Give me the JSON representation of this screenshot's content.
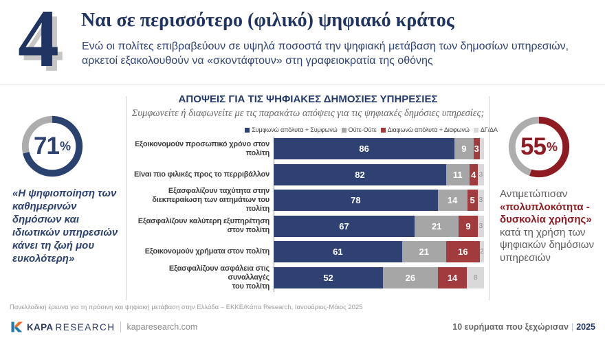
{
  "header": {
    "number": "4",
    "title": "Ναι σε περισσότερο (φιλικό) ψηφιακό κράτος",
    "subtitle": "Ενώ οι πολίτες επιβραβεύουν σε υψηλά ποσοστά την ψηφιακή μετάβαση των δημοσίων υπηρεσιών, αρκετοί εξακολουθούν να «σκοντάφτουν» στη γραφειοκρατία της οθόνης"
  },
  "left_stat": {
    "value": 71,
    "percent_sign": "%",
    "color": "#2B4170",
    "track_color": "#ADADAD",
    "quote": "«Η ψηφιοποίηση των καθημερινών δημόσιων και ιδιωτικών υπηρεσιών κάνει τη ζωή μου ευκολότερη»"
  },
  "right_stat": {
    "value": 55,
    "percent_sign": "%",
    "color": "#8E1B22",
    "track_color": "#ADADAD",
    "text_before": "Αντιμετώπισαν",
    "text_highlight": "«πολυπλοκότητα - δυσκολία χρήσης»",
    "text_after": "κατά τη χρήση των ψηφιακών δημόσιων υπηρεσιών"
  },
  "panel": {
    "title": "ΑΠΟΨΕΙΣ ΓΙΑ ΤΙΣ ΨΗΦΙΑΚΕΣ ΔΗΜΟΣΙΕΣ ΥΠΗΡΕΣΙΕΣ",
    "subtitle": "Συμφωνείτε ή διαφωνείτε με τις παρακάτω απόψεις για τις ψηφιακές δημόσιες υπηρεσίες;"
  },
  "chart_data": [
    {
      "type": "bar",
      "orientation": "horizontal_stacked",
      "title": "ΑΠΟΨΕΙΣ ΓΙΑ ΤΙΣ ΨΗΦΙΑΚΕΣ ΔΗΜΟΣΙΕΣ ΥΠΗΡΕΣΙΕΣ",
      "subtitle": "Συμφωνείτε ή διαφωνείτε με τις παρακάτω απόψεις για τις ψηφιακές δημόσιες υπηρεσίες;",
      "xlim": [
        0,
        100
      ],
      "legend_position": "top",
      "categories": [
        "Εξοικονομούν προσωπικό χρόνο στον\nπολίτη",
        "Είναι πιο φιλικές προς το περριβάλλον",
        "Εξασφαλίζουν ταχύτητα στην\nδιεκπεραίωση των αιτημάτων του πολίτη",
        "Εξασφαλίζουν καλύτερη εξυπηρέτηση\nστον πολίτη",
        "Εξοικονομούν χρήματα στον πολίτη",
        "Εξασφαλίζουν ασφάλεια στις συναλλαγές\nτου πολίτη"
      ],
      "series": [
        {
          "name": "Συμφωνώ απόλυτα + Συμφωνώ",
          "color": "#2E4172",
          "values": [
            86,
            82,
            78,
            67,
            61,
            52
          ]
        },
        {
          "name": "Ούτε-Ούτε",
          "color": "#A6A6A6",
          "values": [
            9,
            11,
            14,
            21,
            21,
            26
          ]
        },
        {
          "name": "Διαφωνώ απόλυτα + Διαφωνώ",
          "color": "#A23B3E",
          "values": [
            3,
            4,
            5,
            9,
            16,
            14
          ]
        },
        {
          "name": "ΔΓ/ΔΑ",
          "color": "#D9D9D9",
          "values": [
            2,
            3,
            3,
            3,
            2,
            8
          ]
        }
      ],
      "dgda_display_labels": [
        "",
        "3",
        "3",
        "3",
        "2",
        "8"
      ]
    },
    {
      "type": "pie",
      "variant": "donut",
      "position": "left",
      "values": [
        71,
        29
      ],
      "colors": [
        "#2B4170",
        "#ADADAD"
      ],
      "center_text": "71%"
    },
    {
      "type": "pie",
      "variant": "donut",
      "position": "right",
      "values": [
        55,
        45
      ],
      "colors": [
        "#8E1B22",
        "#ADADAD"
      ],
      "center_text": "55%"
    }
  ],
  "footnote": "Πανελλαδική έρευνα για τη πράσινη και ψηφιακή μετάβαση στην Ελλάδα – ΕΚΚΕ/Κάπα Research, Ιανουάριος-Μάιος 2025",
  "footer": {
    "brand_kapa": "KAPA",
    "brand_research": "RESEARCH",
    "site": "kaparesearch.com",
    "tagline": "10 ευρήματα που ξεχώρισαν",
    "separator": "|",
    "year": "2025"
  }
}
